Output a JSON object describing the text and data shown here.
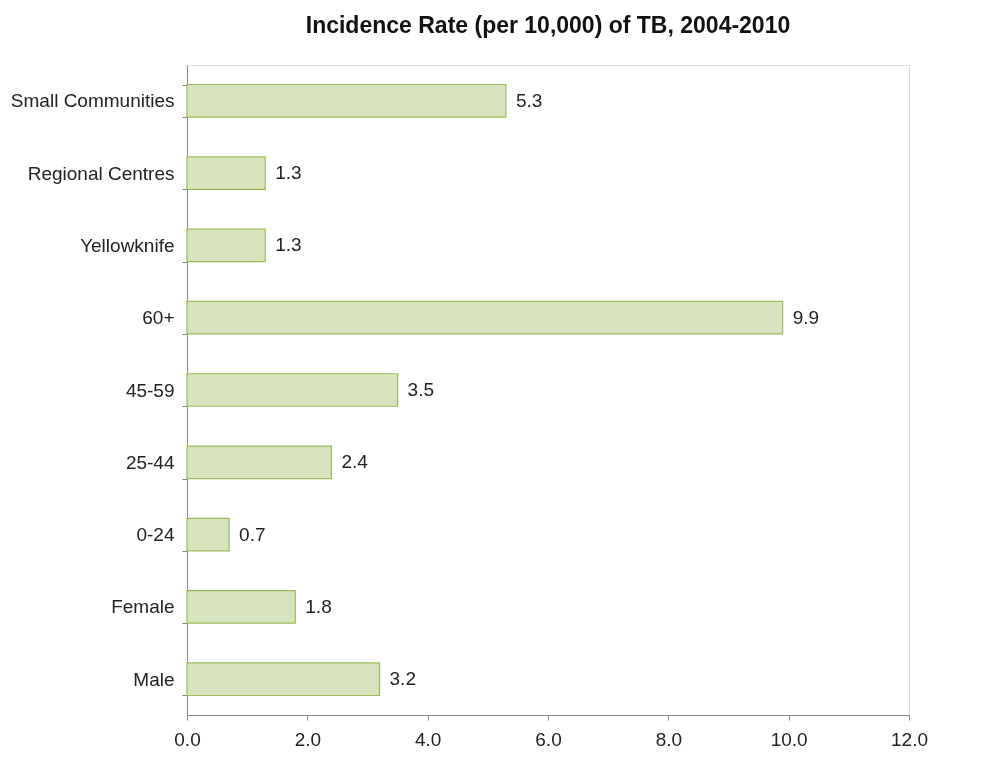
{
  "chart_data": {
    "type": "bar",
    "orientation": "horizontal",
    "title": "Incidence Rate (per 10,000) of TB, 2004-2010",
    "categories": [
      "Small Communities",
      "Regional Centres",
      "Yellowknife",
      "60+",
      "45-59",
      "25-44",
      "0-24",
      "Female",
      "Male"
    ],
    "values": [
      5.3,
      1.3,
      1.3,
      9.9,
      3.5,
      2.4,
      0.7,
      1.8,
      3.2
    ],
    "color": "#d7e4bd",
    "xlim": [
      0,
      12
    ],
    "xticks": [
      {
        "value": 0,
        "label": "0.0"
      },
      {
        "value": 2,
        "label": "2.0"
      },
      {
        "value": 4,
        "label": "4.0"
      },
      {
        "value": 6,
        "label": "6.0"
      },
      {
        "value": 8,
        "label": "8.0"
      },
      {
        "value": 10,
        "label": "10.0"
      },
      {
        "value": 12,
        "label": "12.0"
      }
    ],
    "data_labels": true,
    "grid": false
  }
}
